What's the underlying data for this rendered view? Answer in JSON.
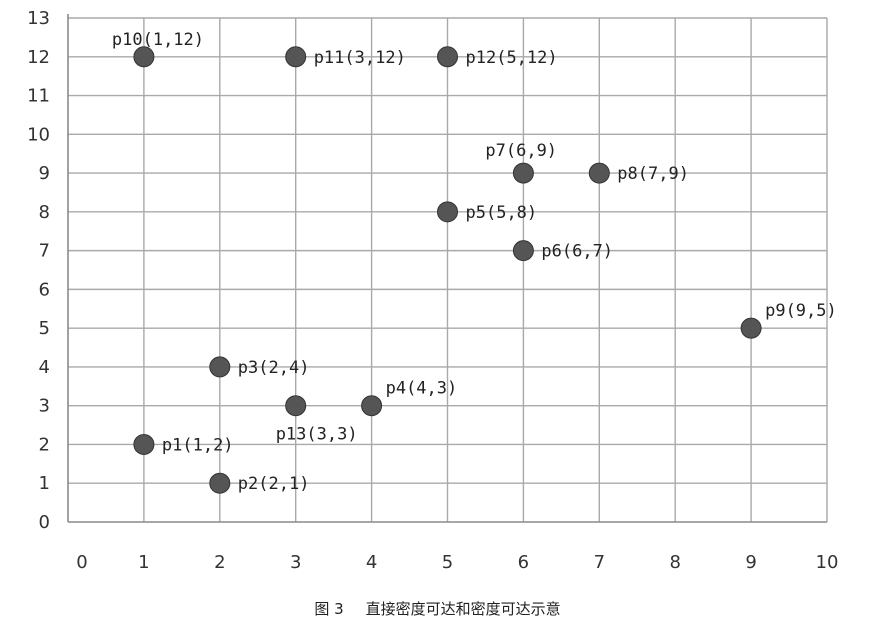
{
  "chart_data": {
    "type": "scatter",
    "title": "",
    "xlabel": "",
    "ylabel": "",
    "xlim": [
      0,
      10
    ],
    "ylim": [
      0,
      13
    ],
    "x_ticks": [
      0,
      1,
      2,
      3,
      4,
      5,
      6,
      7,
      8,
      9,
      10
    ],
    "y_ticks": [
      0,
      1,
      2,
      3,
      4,
      5,
      6,
      7,
      8,
      9,
      10,
      11,
      12,
      13
    ],
    "grid": true,
    "marker_color": "#555555",
    "points": [
      {
        "label": "p1(1,2)",
        "x": 1,
        "y": 2
      },
      {
        "label": "p2(2,1)",
        "x": 2,
        "y": 1
      },
      {
        "label": "p3(2,4)",
        "x": 2,
        "y": 4
      },
      {
        "label": "p4(4,3)",
        "x": 4,
        "y": 3
      },
      {
        "label": "p5(5,8)",
        "x": 5,
        "y": 8
      },
      {
        "label": "p6(6,7)",
        "x": 6,
        "y": 7
      },
      {
        "label": "p7(6,9)",
        "x": 6,
        "y": 9
      },
      {
        "label": "p8(7,9)",
        "x": 7,
        "y": 9
      },
      {
        "label": "p9(9,5)",
        "x": 9,
        "y": 5
      },
      {
        "label": "p10(1,12)",
        "x": 1,
        "y": 12
      },
      {
        "label": "p11(3,12)",
        "x": 3,
        "y": 12
      },
      {
        "label": "p12(5,12)",
        "x": 5,
        "y": 12
      },
      {
        "label": "p13(3,3)",
        "x": 3,
        "y": 3
      }
    ]
  },
  "caption": {
    "figure_number": "图 3",
    "text": "直接密度可达和密度可达示意"
  }
}
